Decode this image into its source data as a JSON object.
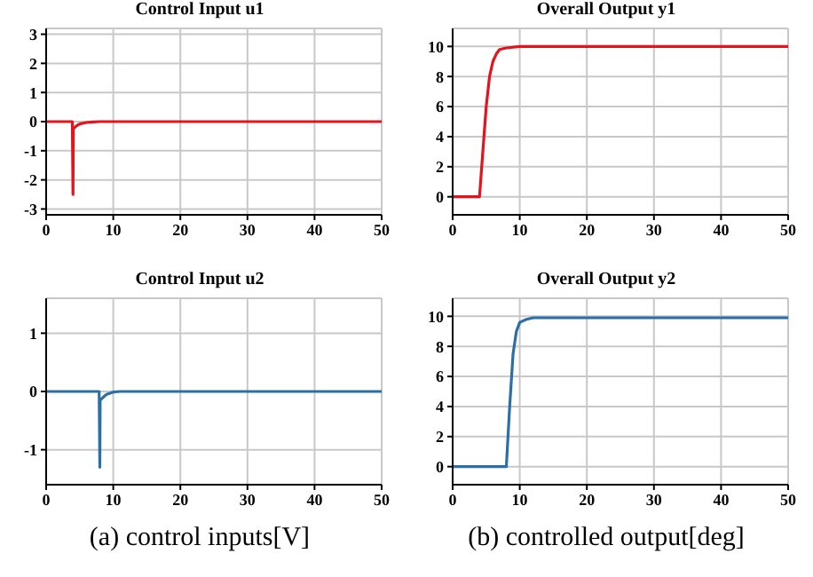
{
  "chart_data": [
    {
      "type": "line",
      "title": "Control Input u1",
      "x": [
        0,
        3.9,
        4,
        4.05,
        4.5,
        5,
        6,
        7,
        8,
        50
      ],
      "series": [
        {
          "color": "#e3141b",
          "values": [
            0,
            0,
            -2.5,
            -0.25,
            -0.15,
            -0.08,
            -0.03,
            -0.01,
            0,
            0
          ]
        }
      ],
      "xlim": [
        0,
        50
      ],
      "xticks": [
        0,
        10,
        20,
        30,
        40,
        50
      ],
      "ylim": [
        -3.2,
        3.2
      ],
      "yticks": [
        -3,
        -2,
        -1,
        0,
        1,
        2,
        3
      ],
      "grid": true,
      "legend": false,
      "marker": "none",
      "line_style": "solid"
    },
    {
      "type": "line",
      "title": "Overall Output y1",
      "x": [
        0,
        4,
        4.5,
        5,
        5.5,
        6,
        6.5,
        7,
        8,
        10,
        50
      ],
      "series": [
        {
          "color": "#e3141b",
          "values": [
            0,
            0,
            3,
            6,
            8,
            9,
            9.5,
            9.8,
            9.9,
            10,
            10
          ]
        }
      ],
      "xlim": [
        0,
        50
      ],
      "xticks": [
        0,
        10,
        20,
        30,
        40,
        50
      ],
      "ylim": [
        -1.2,
        11.2
      ],
      "yticks": [
        0,
        2,
        4,
        6,
        8,
        10
      ],
      "grid": true,
      "legend": false,
      "marker": "none",
      "line_style": "solid"
    },
    {
      "type": "line",
      "title": "Control Input u2",
      "x": [
        0,
        7.9,
        8,
        8.05,
        8.5,
        9,
        10,
        11,
        50
      ],
      "series": [
        {
          "color": "#2c6fa6",
          "values": [
            0,
            0,
            -1.3,
            -0.15,
            -0.1,
            -0.05,
            -0.01,
            0,
            0
          ]
        }
      ],
      "xlim": [
        0,
        50
      ],
      "xticks": [
        0,
        10,
        20,
        30,
        40,
        50
      ],
      "ylim": [
        -1.6,
        1.6
      ],
      "yticks": [
        -1,
        0,
        1
      ],
      "grid": true,
      "legend": false,
      "marker": "none",
      "line_style": "solid",
      "annotations": [
        "(a)  control inputs[V]"
      ]
    },
    {
      "type": "line",
      "title": "Overall Output y2",
      "x": [
        0,
        8,
        8.5,
        9,
        9.5,
        10,
        11,
        12,
        50
      ],
      "series": [
        {
          "color": "#2c6fa6",
          "values": [
            0,
            0,
            4,
            7.5,
            9,
            9.6,
            9.8,
            9.9,
            9.9
          ]
        }
      ],
      "xlim": [
        0,
        50
      ],
      "xticks": [
        0,
        10,
        20,
        30,
        40,
        50
      ],
      "ylim": [
        -1.2,
        11.2
      ],
      "yticks": [
        0,
        2,
        4,
        6,
        8,
        10
      ],
      "grid": true,
      "legend": false,
      "marker": "none",
      "line_style": "solid",
      "annotations": [
        "(b)  controlled output[deg]"
      ]
    }
  ]
}
